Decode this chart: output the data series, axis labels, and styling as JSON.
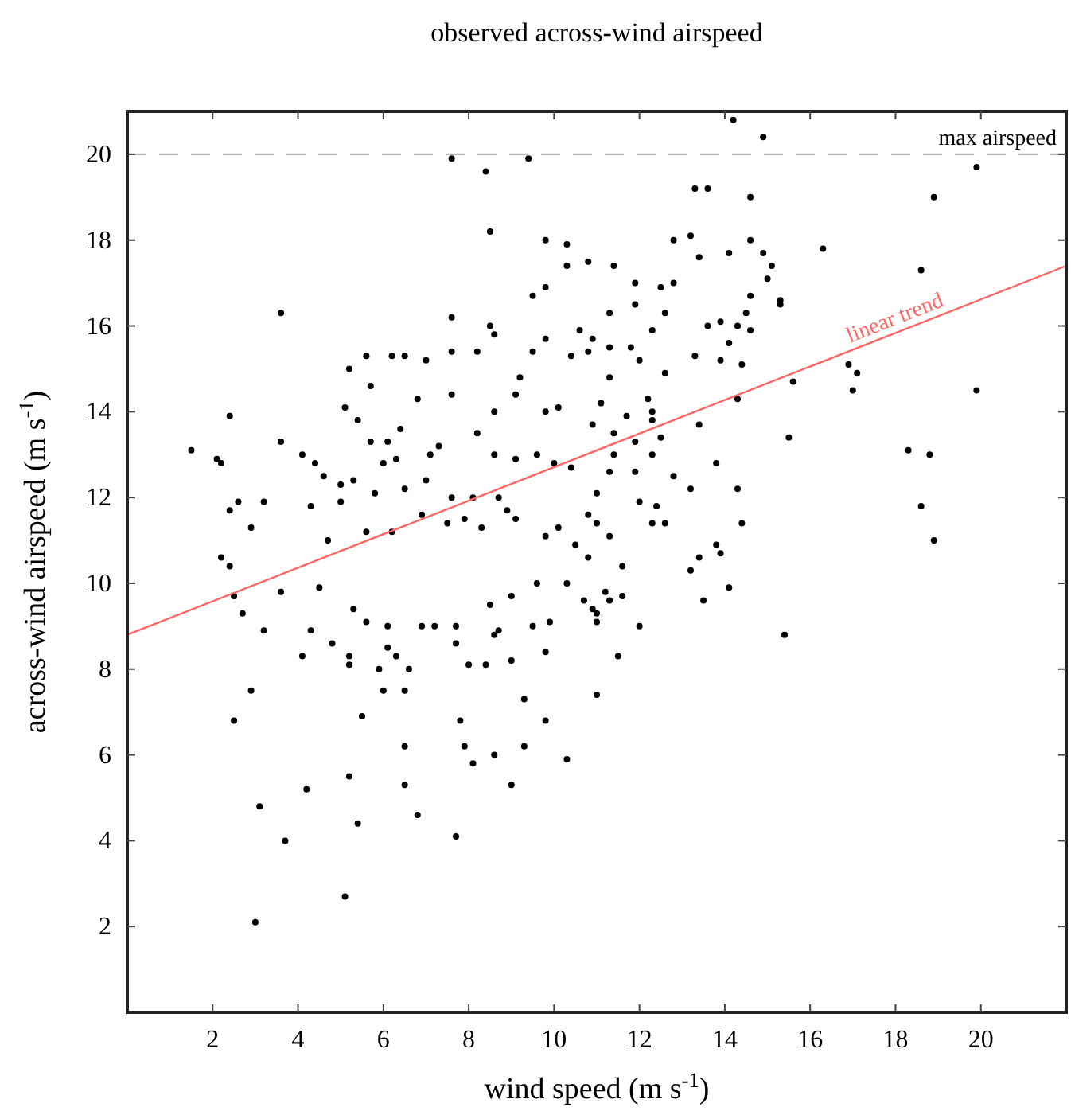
{
  "chart_data": {
    "type": "scatter",
    "title": "observed across-wind airspeed",
    "xlabel": "wind speed (m s$^{-1}$)",
    "ylabel": "across-wind airspeed (m s$^{-1}$)",
    "xlim": [
      0,
      22
    ],
    "ylim": [
      0,
      21
    ],
    "xticks": [
      2,
      4,
      6,
      8,
      10,
      12,
      14,
      16,
      18,
      20
    ],
    "yticks": [
      2,
      4,
      6,
      8,
      10,
      12,
      14,
      16,
      18,
      20
    ],
    "grid": false,
    "ref_lines": [
      {
        "axis": "y",
        "value": 20,
        "label": "max airspeed",
        "color": "#b3b3b3",
        "line_style": "dashed"
      }
    ],
    "series": [
      {
        "color": "#000000",
        "marker": "circle",
        "x": [
          1.5,
          7.6,
          8.4,
          9.4,
          8.5,
          3.6,
          3.6,
          2.4,
          2.1,
          2.2,
          2.4,
          2.6,
          2.9,
          3.2,
          9.8,
          10.3,
          10.3,
          10.8,
          9.5,
          9.8,
          7.6,
          8.5,
          8.6,
          5.6,
          6.2,
          6.5,
          7.0,
          5.2,
          5.7,
          7.6,
          8.2,
          7.6,
          5.1,
          5.4,
          4.1,
          4.4,
          4.6,
          5.0,
          4.3,
          5.3,
          5.7,
          6.1,
          6.3,
          6.8,
          7.3,
          7.1,
          6.4,
          8.2,
          8.6,
          9.1,
          9.2,
          9.5,
          9.8,
          10.1,
          10.4,
          10.8,
          10.6,
          9.8,
          8.6,
          9.1,
          9.6,
          10.0,
          10.4,
          7.6,
          8.1,
          8.7,
          8.9,
          10.8,
          6.5,
          7.0,
          6.0,
          5.8,
          5.0,
          4.7,
          5.6,
          6.2,
          6.9,
          7.5,
          7.9,
          8.3,
          9.1,
          9.8,
          10.1,
          10.5,
          10.8,
          14.2,
          14.9,
          19.9,
          18.9,
          13.3,
          13.6,
          14.6,
          12.8,
          13.2,
          14.6,
          16.3,
          14.1,
          13.4,
          14.9,
          15.1,
          15.0,
          15.3,
          15.3,
          18.6,
          14.6,
          14.5,
          14.3,
          14.6,
          13.6,
          13.9,
          14.1,
          13.3,
          13.9,
          14.4,
          15.6,
          16.9,
          17.1,
          17.0,
          19.9,
          14.3,
          15.5,
          13.4,
          18.3,
          18.8,
          18.6,
          18.9,
          14.4,
          14.3,
          13.8,
          12.8,
          13.2,
          13.4,
          13.8,
          12.3,
          12.6,
          12.4,
          11.3,
          12.0,
          11.4,
          11.9,
          12.5,
          12.8,
          11.3,
          11.9,
          10.9,
          11.3,
          11.8,
          12.3,
          12.6,
          12.0,
          12.6,
          11.3,
          12.2,
          11.1,
          11.7,
          12.3,
          10.9,
          11.4,
          11.9,
          12.3,
          12.5,
          11.4,
          11.9,
          11.3,
          11.0,
          12.3,
          11.0,
          2.2,
          2.4,
          2.5,
          2.7,
          3.2,
          2.9,
          2.5,
          3.1,
          3.7,
          3.0,
          5.1,
          4.2,
          5.2,
          5.4,
          4.1,
          4.3,
          4.8,
          5.2,
          5.5,
          6.0,
          5.9,
          6.5,
          6.5,
          6.5,
          6.8,
          7.7,
          7.8,
          7.9,
          8.1,
          8.6,
          9.0,
          9.3,
          9.3,
          9.8,
          10.3,
          11.0,
          8.0,
          8.4,
          7.7,
          9.0,
          9.8,
          9.5,
          9.9,
          8.7,
          6.9,
          6.1,
          6.3,
          6.6,
          5.2,
          3.6,
          4.5,
          5.3,
          5.6,
          6.1,
          7.2,
          7.7,
          8.6,
          8.5,
          9.0,
          9.6,
          10.3,
          10.7,
          10.9,
          11.0,
          11.5,
          12.0,
          15.4,
          14.1,
          13.5,
          13.2,
          13.9,
          11.6,
          11.6,
          11.3,
          11.0,
          11.2
        ],
        "values": [
          13.1,
          19.9,
          19.6,
          19.9,
          18.2,
          16.3,
          13.3,
          13.9,
          12.9,
          12.8,
          11.7,
          11.9,
          11.3,
          11.9,
          18.0,
          17.9,
          17.4,
          17.5,
          16.7,
          16.9,
          16.2,
          16.0,
          15.8,
          15.3,
          15.3,
          15.3,
          15.2,
          15.0,
          14.6,
          15.4,
          15.4,
          14.4,
          14.1,
          13.8,
          13.0,
          12.8,
          12.5,
          12.3,
          11.8,
          12.4,
          13.3,
          13.3,
          12.9,
          14.3,
          13.2,
          13.0,
          13.6,
          13.5,
          14.0,
          14.4,
          14.8,
          15.4,
          14.0,
          14.1,
          15.3,
          15.4,
          15.9,
          15.7,
          13.0,
          12.9,
          13.0,
          12.8,
          12.7,
          12.0,
          12.0,
          12.0,
          11.7,
          11.6,
          12.2,
          12.4,
          12.8,
          12.1,
          11.9,
          11.0,
          11.2,
          11.2,
          11.6,
          11.4,
          11.5,
          11.3,
          11.5,
          11.1,
          11.3,
          10.9,
          10.6,
          20.8,
          20.4,
          19.7,
          19.0,
          19.2,
          19.2,
          19.0,
          18.0,
          18.1,
          18.0,
          17.8,
          17.7,
          17.6,
          17.7,
          17.4,
          17.1,
          16.6,
          16.5,
          17.3,
          16.7,
          16.3,
          16.0,
          15.9,
          16.0,
          16.1,
          15.6,
          15.3,
          15.2,
          15.1,
          14.7,
          15.1,
          14.9,
          14.5,
          14.5,
          14.3,
          13.4,
          13.7,
          13.1,
          13.0,
          11.8,
          11.0,
          11.4,
          12.2,
          12.8,
          12.5,
          12.2,
          10.6,
          10.9,
          11.4,
          11.4,
          11.8,
          11.1,
          11.9,
          17.4,
          17.0,
          16.9,
          17.0,
          16.3,
          16.5,
          15.7,
          15.5,
          15.5,
          15.9,
          16.3,
          15.2,
          14.9,
          14.8,
          14.3,
          14.2,
          13.9,
          14.0,
          13.7,
          13.5,
          13.3,
          13.8,
          13.4,
          13.0,
          12.6,
          12.6,
          12.1,
          13.0,
          11.4,
          10.6,
          10.4,
          9.7,
          9.3,
          8.9,
          7.5,
          6.8,
          4.8,
          4.0,
          2.1,
          2.7,
          5.2,
          5.5,
          4.4,
          8.3,
          8.9,
          8.6,
          8.1,
          6.9,
          7.5,
          8.0,
          7.5,
          6.2,
          5.3,
          4.6,
          4.1,
          6.8,
          6.2,
          5.8,
          6.0,
          5.3,
          6.2,
          7.3,
          6.8,
          5.9,
          7.4,
          8.1,
          8.1,
          8.6,
          8.2,
          8.4,
          9.0,
          9.1,
          8.9,
          9.0,
          8.5,
          8.3,
          8.0,
          8.3,
          9.8,
          9.9,
          9.4,
          9.1,
          9.0,
          9.0,
          9.0,
          8.8,
          9.5,
          9.7,
          10.0,
          10.0,
          9.6,
          9.4,
          9.3,
          8.3,
          9.0,
          8.8,
          9.9,
          9.6,
          10.3,
          10.7,
          10.4,
          9.7,
          9.6,
          9.1,
          9.8
        ]
      },
      {
        "type": "line",
        "name": "linear trend",
        "color": "#ff6666",
        "line_style": "solid",
        "x": [
          0,
          22
        ],
        "values": [
          8.8,
          17.4
        ]
      }
    ]
  }
}
